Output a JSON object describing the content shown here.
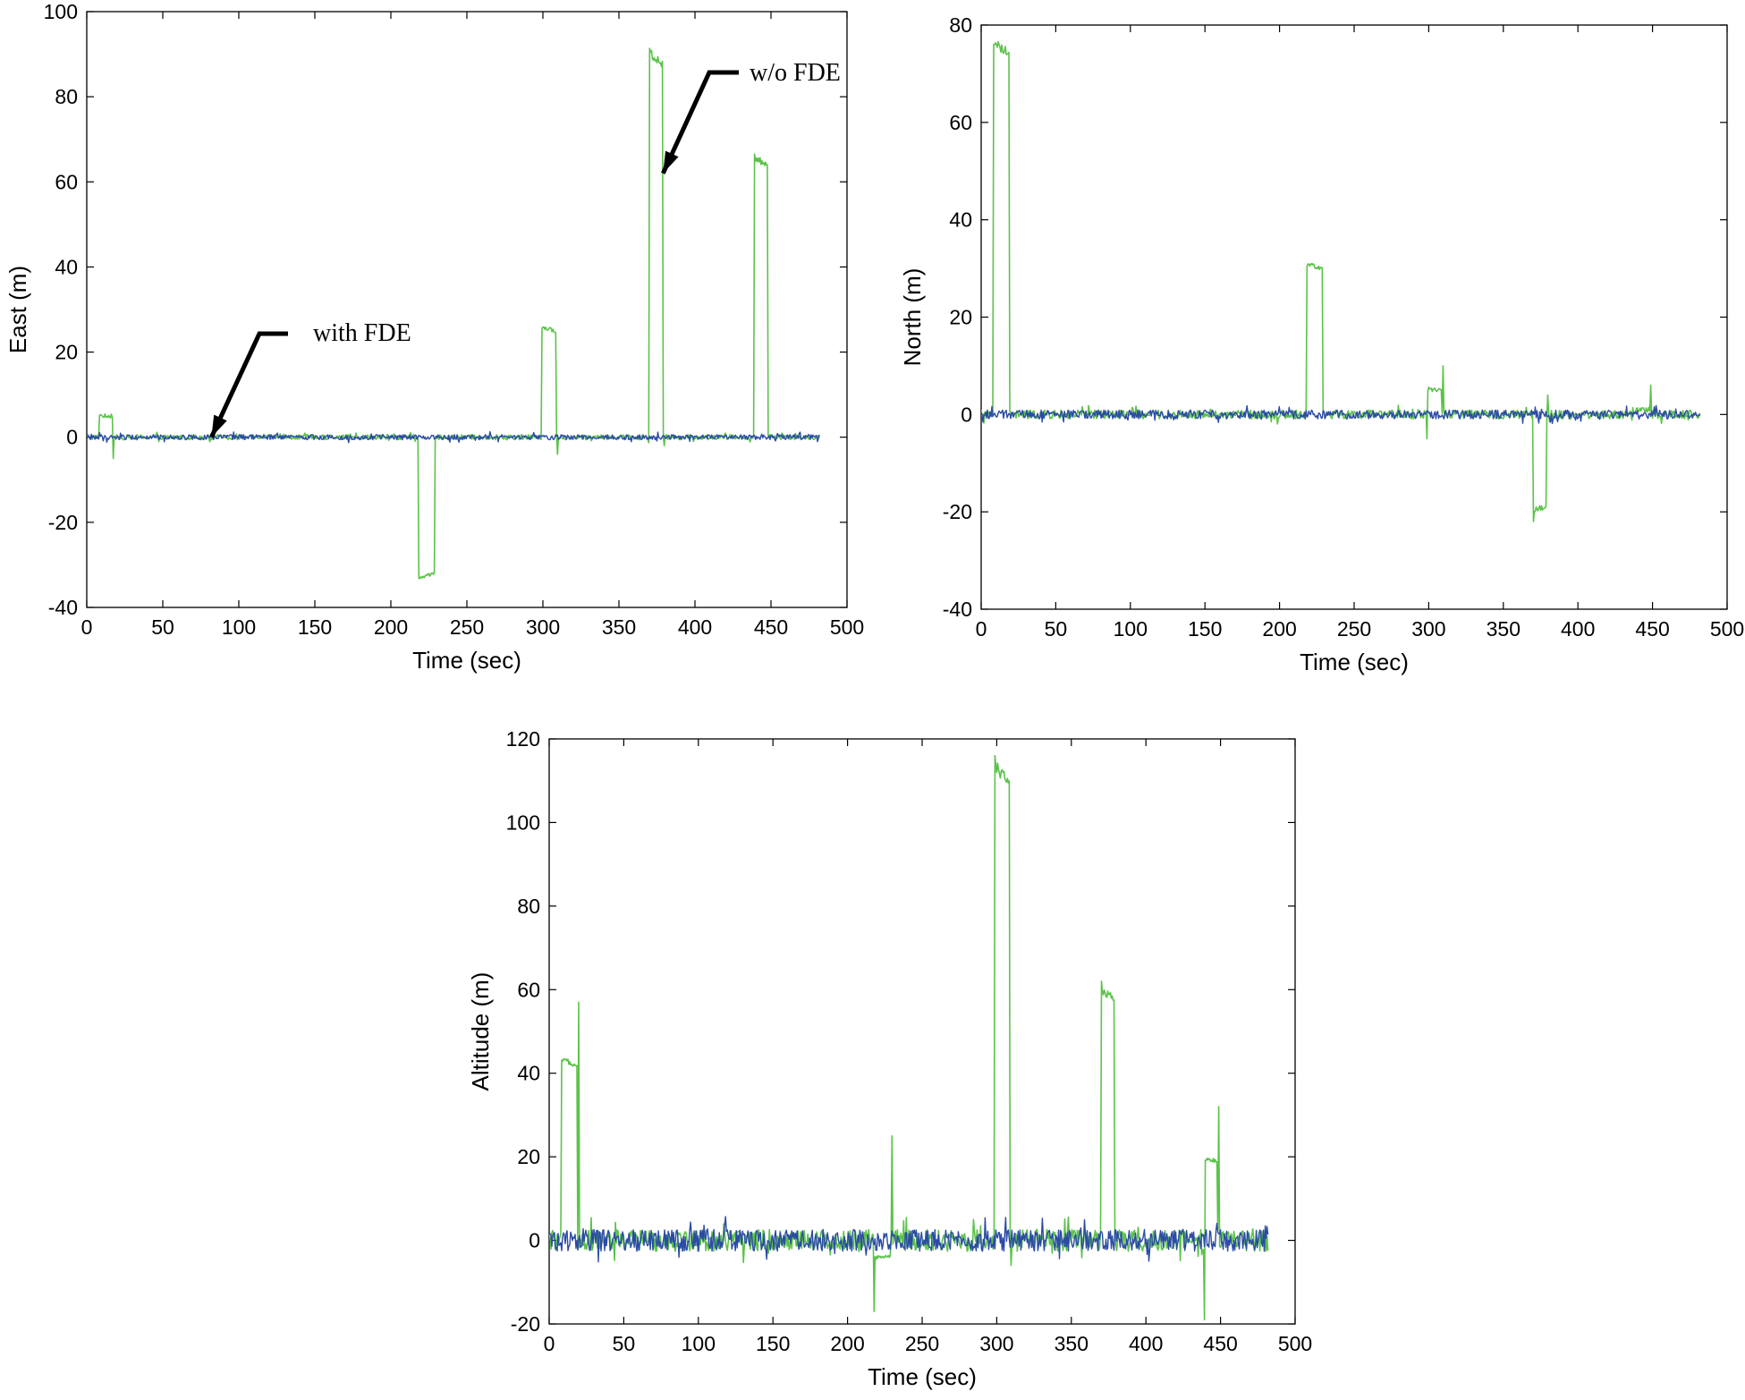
{
  "figure": {
    "legend": {
      "placement": "none"
    }
  },
  "chart_data": [
    {
      "id": "east",
      "type": "line",
      "title": "",
      "xlabel": "Time (sec)",
      "ylabel": "East (m)",
      "xlim": [
        0,
        500
      ],
      "ylim": [
        -40,
        100
      ],
      "xticks": [
        0,
        50,
        100,
        150,
        200,
        250,
        300,
        350,
        400,
        450,
        500
      ],
      "yticks": [
        -40,
        -20,
        0,
        20,
        40,
        60,
        80,
        100
      ],
      "grid": false,
      "series": [
        {
          "name": "w/o FDE",
          "color": "#5cc24a",
          "segments": [
            {
              "start": 8,
              "end": 17,
              "level": 5,
              "spike_after": -5
            },
            {
              "start": 218,
              "end": 229,
              "level": -32
            },
            {
              "start": 299,
              "end": 309,
              "level": 25,
              "spike_after": -4
            },
            {
              "start": 370,
              "end": 379,
              "level": 88,
              "spike_after": -2
            },
            {
              "start": 439,
              "end": 448,
              "level": 64
            }
          ],
          "baseline_noise": 0.6,
          "end_time": 482
        },
        {
          "name": "with FDE",
          "color": "#2b4ba5",
          "segments": [],
          "baseline_noise": 0.6,
          "end_time": 482
        }
      ],
      "annotations": [
        {
          "text": "with FDE",
          "x": 82,
          "y": 0
        },
        {
          "text": "w/o FDE",
          "x": 379,
          "y": 62
        }
      ]
    },
    {
      "id": "north",
      "type": "line",
      "title": "",
      "xlabel": "Time (sec)",
      "ylabel": "North (m)",
      "xlim": [
        0,
        500
      ],
      "ylim": [
        -40,
        80
      ],
      "xticks": [
        0,
        50,
        100,
        150,
        200,
        250,
        300,
        350,
        400,
        450,
        500
      ],
      "yticks": [
        -40,
        -20,
        0,
        20,
        40,
        60,
        80
      ],
      "grid": false,
      "series": [
        {
          "name": "w/o FDE",
          "color": "#5cc24a",
          "segments": [
            {
              "start": 8,
              "end": 19,
              "level": 74
            },
            {
              "start": 218,
              "end": 229,
              "level": 30
            },
            {
              "start": 299,
              "end": 309,
              "level": 5,
              "spike_after": 10,
              "spike_before": -5
            },
            {
              "start": 370,
              "end": 379,
              "level": -19,
              "spike_before": -22,
              "spike_after": 4
            },
            {
              "start": 439,
              "end": 448,
              "level": 1,
              "spike_after": 6
            }
          ],
          "baseline_noise": 0.9,
          "end_time": 482
        },
        {
          "name": "with FDE",
          "color": "#2b4ba5",
          "segments": [],
          "baseline_noise": 0.9,
          "end_time": 482
        }
      ],
      "annotations": []
    },
    {
      "id": "altitude",
      "type": "line",
      "title": "",
      "xlabel": "Time (sec)",
      "ylabel": "Altitude (m)",
      "xlim": [
        0,
        500
      ],
      "ylim": [
        -20,
        120
      ],
      "xticks": [
        0,
        50,
        100,
        150,
        200,
        250,
        300,
        350,
        400,
        450,
        500
      ],
      "yticks": [
        -20,
        0,
        20,
        40,
        60,
        80,
        100,
        120
      ],
      "grid": false,
      "series": [
        {
          "name": "w/o FDE",
          "color": "#5cc24a",
          "segments": [
            {
              "start": 8,
              "end": 19,
              "level": 42,
              "spike_after": 57
            },
            {
              "start": 218,
              "end": 229,
              "level": -4,
              "spike_before": -17,
              "spike_after": 25
            },
            {
              "start": 299,
              "end": 309,
              "level": 110,
              "spike_before": 116,
              "spike_after": -6
            },
            {
              "start": 370,
              "end": 379,
              "level": 58,
              "spike_before": 62
            },
            {
              "start": 439,
              "end": 448,
              "level": 19,
              "spike_before": -19,
              "spike_after": 32
            }
          ],
          "baseline_noise": 2.6,
          "end_time": 482
        },
        {
          "name": "with FDE",
          "color": "#2b4ba5",
          "segments": [],
          "baseline_noise": 2.6,
          "end_time": 482
        }
      ],
      "annotations": []
    }
  ]
}
